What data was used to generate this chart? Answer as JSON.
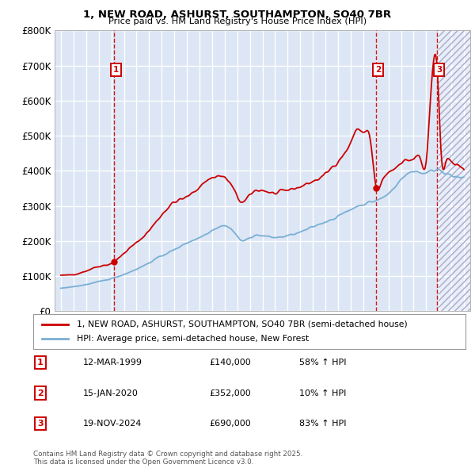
{
  "title_line1": "1, NEW ROAD, ASHURST, SOUTHAMPTON, SO40 7BR",
  "title_line2": "Price paid vs. HM Land Registry's House Price Index (HPI)",
  "legend_line1": "1, NEW ROAD, ASHURST, SOUTHAMPTON, SO40 7BR (semi-detached house)",
  "legend_line2": "HPI: Average price, semi-detached house, New Forest",
  "footer": "Contains HM Land Registry data © Crown copyright and database right 2025.\nThis data is licensed under the Open Government Licence v3.0.",
  "sales": [
    {
      "num": 1,
      "date": "12-MAR-1999",
      "price": 140000,
      "pct": "58%",
      "year": 1999.2
    },
    {
      "num": 2,
      "date": "15-JAN-2020",
      "price": 352000,
      "pct": "10%",
      "year": 2020.04
    },
    {
      "num": 3,
      "date": "19-NOV-2024",
      "price": 690000,
      "pct": "83%",
      "year": 2024.88
    }
  ],
  "property_color": "#cc0000",
  "hpi_color": "#7aafd4",
  "background_color": "#dce6f5",
  "grid_color": "#ffffff",
  "ylim": [
    0,
    800000
  ],
  "xlim_start": 1994.5,
  "xlim_end": 2027.5,
  "yticks": [
    0,
    100000,
    200000,
    300000,
    400000,
    500000,
    600000,
    700000,
    800000
  ],
  "xticks": [
    1995,
    1996,
    1997,
    1998,
    1999,
    2000,
    2001,
    2002,
    2003,
    2004,
    2005,
    2006,
    2007,
    2008,
    2009,
    2010,
    2011,
    2012,
    2013,
    2014,
    2015,
    2016,
    2017,
    2018,
    2019,
    2020,
    2021,
    2022,
    2023,
    2024,
    2025,
    2026,
    2027
  ]
}
